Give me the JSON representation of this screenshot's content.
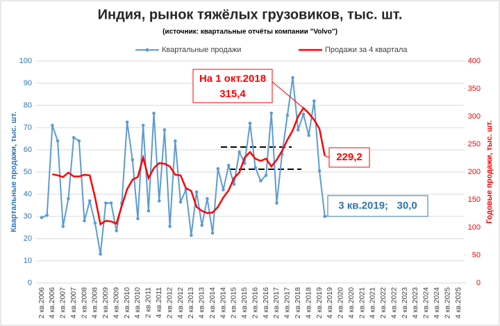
{
  "chart_data": {
    "type": "line",
    "title": "Индия, рынок тяжёлых грузовиков, тыс. шт.",
    "subtitle": "(источник: квартальные отчёты компании \"Volvo\")",
    "y_label": "Квартальные продажи, тыс. шт.",
    "y2_label": "Годовые продажи, тыс. шт.",
    "categories": [
      "2 кв.2006",
      null,
      "4 кв.2006",
      null,
      "2 кв.2007",
      null,
      "4 кв.2007",
      null,
      "2 кв.2008",
      null,
      "4 кв.2008",
      null,
      "2 кв.2009",
      null,
      "4 кв.2009",
      null,
      "2 кв.2010",
      null,
      "4 кв.2010",
      null,
      "2 кв.2011",
      null,
      "4 кв.2011",
      null,
      "2 кв.2012",
      null,
      "4 кв.2012",
      null,
      "2 кв.2013",
      null,
      "4 кв.2013",
      null,
      "2 кв.2014",
      null,
      "4 кв.2014",
      null,
      "2 кв.2015",
      null,
      "4 кв.2015",
      null,
      "2 кв.2016",
      null,
      "4 кв.2016",
      null,
      "2 кв.2017",
      null,
      "4 кв.2017",
      null,
      "2 кв.2018",
      null,
      "4 кв.2018",
      null,
      "2 кв.2019",
      null,
      "4 кв.2019",
      null,
      "2 кв.2020",
      null,
      "4 кв.2020",
      null,
      "2 кв.2021",
      null,
      "4 кв.2021",
      null,
      "2 кв.2022",
      null,
      "4 кв.2022",
      null,
      "2 кв.2023",
      null,
      "4 кв.2023",
      null,
      "2 кв.2024",
      null,
      "4 кв.2024",
      null,
      "2 кв.2025",
      null,
      "4 кв.2025"
    ],
    "series": [
      {
        "name": "Квартальные продажи",
        "color": "#5b9bd5",
        "marker": true,
        "values": [
          29.5,
          30.5,
          71,
          64,
          25.5,
          38,
          65.5,
          64,
          28,
          37,
          27,
          13,
          36,
          36,
          23.5,
          36,
          72.5,
          55.5,
          29,
          71,
          32.5,
          76.5,
          37,
          69,
          25.5,
          64,
          36.5,
          42,
          21.5,
          41,
          26,
          38,
          22.5,
          51.5,
          42,
          53,
          44.5,
          59,
          54,
          72,
          52,
          46,
          48.5,
          76.5,
          36,
          58,
          75.5,
          92.5,
          69,
          76,
          66.5,
          82,
          50.5,
          30,
          null,
          null,
          null,
          null,
          null,
          null,
          null,
          null,
          null,
          null,
          null,
          null,
          null,
          null,
          null,
          null,
          null,
          null,
          null,
          null,
          null,
          null,
          null,
          null,
          null
        ]
      },
      {
        "name": "Продажи за 4 квартала",
        "color": "#ff0000",
        "axis": "y2",
        "marker": false,
        "values": [
          null,
          null,
          196,
          194,
          191,
          199,
          192,
          192,
          195,
          194,
          154,
          106,
          112,
          111,
          107,
          139,
          169,
          186,
          191,
          226,
          189,
          207,
          216,
          215,
          210,
          195,
          194,
          171,
          166,
          137,
          130,
          126,
          127,
          137,
          154,
          167,
          189,
          199,
          226,
          236,
          224,
          220,
          224,
          210,
          222,
          238,
          258,
          275,
          300,
          315.4,
          306,
          294,
          278,
          229.2,
          null,
          null,
          null,
          null,
          null,
          null,
          null,
          null,
          null,
          null,
          null,
          null,
          null,
          null,
          null,
          null,
          null,
          null,
          null,
          null,
          null,
          null,
          null,
          null,
          null
        ]
      }
    ],
    "ylim": [
      0,
      100
    ],
    "yticks": [
      0,
      10,
      20,
      30,
      40,
      50,
      60,
      70,
      80,
      90,
      100
    ],
    "y2lim": [
      0,
      400
    ],
    "y2ticks": [
      0,
      50,
      100,
      150,
      200,
      250,
      300,
      350,
      400
    ],
    "grid": true,
    "legend": "top",
    "annotations": [
      "На 1 окт.2018",
      "315,4",
      "229,2",
      "3 кв.2019;   30,0"
    ]
  }
}
